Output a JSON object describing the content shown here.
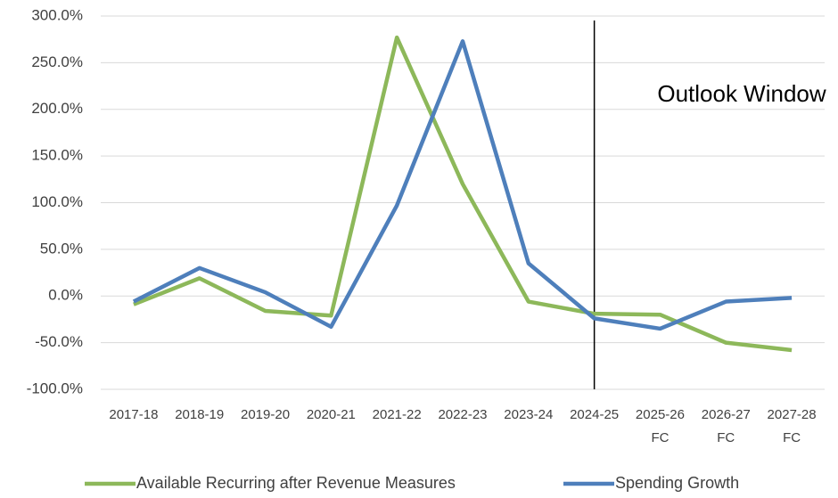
{
  "chart_data": {
    "type": "line",
    "annotation": "Outlook Window",
    "categories": [
      "2017-18",
      "2018-19",
      "2019-20",
      "2020-21",
      "2021-22",
      "2022-23",
      "2023-24",
      "2024-25",
      "2025-26 FC",
      "2026-27 FC",
      "2027-28 FC"
    ],
    "series": [
      {
        "name": "Available Recurring after Revenue Measures",
        "color": "#8db85a",
        "values": [
          -9,
          19,
          -16,
          -21,
          277,
          120,
          -6,
          -19,
          -20,
          -50,
          -58
        ]
      },
      {
        "name": "Spending Growth",
        "color": "#4e7fbb",
        "values": [
          -6,
          30,
          4,
          -33,
          97,
          273,
          35,
          -24,
          -35,
          -6,
          -2
        ]
      }
    ],
    "ylim": [
      -100,
      300
    ],
    "yticks": [
      {
        "value": -100,
        "label": "-100.0%"
      },
      {
        "value": -50,
        "label": "-50.0%"
      },
      {
        "value": 0,
        "label": "0.0%"
      },
      {
        "value": 50,
        "label": "50.0%"
      },
      {
        "value": 100,
        "label": "100.0%"
      },
      {
        "value": 150,
        "label": "150.0%"
      },
      {
        "value": 200,
        "label": "200.0%"
      },
      {
        "value": 250,
        "label": "250.0%"
      },
      {
        "value": 300,
        "label": "300.0%"
      }
    ],
    "grid": true,
    "legend": "bottom"
  }
}
